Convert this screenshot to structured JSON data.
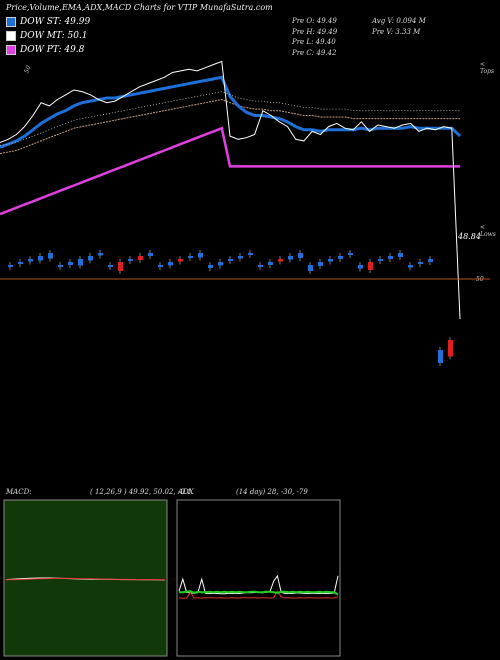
{
  "title": "Price,Volume,EMA,ADX,MACD Charts for VTIP MunafaSutra.com",
  "legend": [
    {
      "label": "DOW ST: 49.99",
      "color": "#1e6fd8"
    },
    {
      "label": "DOW MT: 50.1",
      "color": "#ffffff"
    },
    {
      "label": "DOW PT: 49.8",
      "color": "#e040e0"
    }
  ],
  "stats_left": [
    "Pre  O: 49.49",
    "Pre  H: 49.49",
    "Pre  L: 49.40",
    "Pre  C: 49.42"
  ],
  "stats_right": [
    "Avg V: 0.094  M",
    "Pre   V: 3.33 M"
  ],
  "top_label": "< Tops",
  "lows_label": "< Lows",
  "side_label": "50",
  "top_left_mark": "50",
  "last_value_label": "48.84",
  "macd_label": "MACD:",
  "macd_values": "( 12,26,9 ) 49.92,  50.02,  -0.1",
  "adx_label": "ADX",
  "adx_values": "(14  day) 28,  -30,  -79",
  "colors": {
    "up": "#1e6fd8",
    "down": "#e02020",
    "ema_fast": "#1e6fd8",
    "ema_white": "#ffffff",
    "pt": "#e040e0",
    "macd_bg": "#103808",
    "grid": "#b05020"
  },
  "chart_data": [
    {
      "type": "line",
      "title": "Price, EMA",
      "series": [
        {
          "values": [
            49.95,
            49.97,
            50.0,
            50.05,
            50.12,
            50.2,
            50.18,
            50.22,
            50.25,
            50.28,
            50.27,
            50.25,
            50.22,
            50.2,
            50.21,
            50.24,
            50.27,
            50.3,
            50.32,
            50.34,
            50.36,
            50.39,
            50.4,
            50.41,
            50.4,
            50.42,
            50.44,
            50.46,
            49.99,
            49.97,
            49.98,
            50.0,
            50.15,
            50.12,
            50.08,
            50.05,
            49.97,
            49.96,
            50.02,
            50.0,
            50.05,
            50.07,
            50.04,
            50.03,
            50.08,
            50.02,
            50.06,
            50.05,
            50.04,
            50.06,
            50.07,
            50.02,
            50.04,
            50.03,
            50.05,
            50.04,
            48.84
          ]
        },
        {
          "name": "DOW ST",
          "values": [
            49.92,
            49.94,
            49.96,
            49.99,
            50.03,
            50.07,
            50.1,
            50.13,
            50.15,
            50.18,
            50.2,
            50.21,
            50.22,
            50.23,
            50.23,
            50.24,
            50.25,
            50.26,
            50.27,
            50.28,
            50.29,
            50.3,
            50.31,
            50.32,
            50.33,
            50.34,
            50.35,
            50.36,
            50.24,
            50.18,
            50.14,
            50.12,
            50.12,
            50.11,
            50.1,
            50.08,
            50.05,
            50.03,
            50.03,
            50.02,
            50.03,
            50.03,
            50.03,
            50.03,
            50.04,
            50.03,
            50.04,
            50.04,
            50.04,
            50.04,
            50.05,
            50.04,
            50.04,
            50.04,
            50.04,
            50.04,
            49.99
          ]
        },
        {
          "name": "DOW MT",
          "values": [
            49.88,
            49.89,
            49.9,
            49.92,
            49.94,
            49.96,
            49.98,
            50.0,
            50.02,
            50.04,
            50.05,
            50.06,
            50.07,
            50.08,
            50.09,
            50.1,
            50.11,
            50.12,
            50.13,
            50.14,
            50.15,
            50.16,
            50.17,
            50.18,
            50.19,
            50.2,
            50.21,
            50.22,
            50.2,
            50.18,
            50.17,
            50.16,
            50.16,
            50.15,
            50.15,
            50.14,
            50.13,
            50.12,
            50.12,
            50.11,
            50.11,
            50.11,
            50.11,
            50.1,
            50.1,
            50.1,
            50.1,
            50.1,
            50.1,
            50.1,
            50.1,
            50.1,
            50.1,
            50.1,
            50.1,
            50.1,
            50.1
          ]
        },
        {
          "name": "DOW PT",
          "values": [
            49.5,
            49.52,
            49.54,
            49.56,
            49.58,
            49.6,
            49.62,
            49.64,
            49.66,
            49.68,
            49.7,
            49.72,
            49.74,
            49.76,
            49.78,
            49.8,
            49.82,
            49.84,
            49.86,
            49.88,
            49.9,
            49.92,
            49.94,
            49.96,
            49.98,
            50.0,
            50.02,
            50.04,
            49.8,
            49.8,
            49.8,
            49.8,
            49.8,
            49.8,
            49.8,
            49.8,
            49.8,
            49.8,
            49.8,
            49.8,
            49.8,
            49.8,
            49.8,
            49.8,
            49.8,
            49.8,
            49.8,
            49.8,
            49.8,
            49.8,
            49.8,
            49.8,
            49.8,
            49.8,
            49.8,
            49.8,
            49.8
          ]
        }
      ]
    },
    {
      "type": "bar",
      "title": "Volume",
      "values": [
        0.3,
        0.2,
        0.5,
        0.9,
        1.1,
        0.4,
        0.6,
        1.3,
        0.9,
        0.5,
        0.2,
        1.8,
        0.3,
        0.8,
        0.6,
        0.4,
        0.7,
        0.5,
        0.3,
        0.9,
        0.6,
        0.7,
        0.4,
        0.5,
        0.3,
        0.4,
        0.6,
        0.5,
        0.7,
        1.0,
        1.2,
        0.8,
        0.5,
        0.6,
        0.4,
        0.7,
        1.6,
        0.4,
        0.6,
        0.8,
        0.5,
        0.3,
        0.6,
        2.6,
        3.3
      ]
    },
    {
      "type": "line",
      "title": "MACD",
      "series": [
        {
          "values": [
            0.02,
            0.05,
            0.08,
            0.1,
            0.1,
            0.09,
            0.07,
            0.05,
            0.04,
            0.04,
            0.03,
            0.02,
            0.02,
            0.01,
            0.01,
            0.0
          ]
        },
        {
          "values": [
            0.01,
            0.02,
            0.04,
            0.06,
            0.07,
            0.08,
            0.08,
            0.07,
            0.06,
            0.05,
            0.04,
            0.03,
            0.03,
            0.02,
            0.02,
            0.01
          ]
        }
      ]
    },
    {
      "type": "line",
      "title": "ADX",
      "series": [
        {
          "values": [
            40,
            95,
            35,
            32,
            30,
            33,
            95,
            30,
            30,
            30,
            30,
            28,
            28,
            30,
            31,
            30,
            30,
            32,
            34,
            33,
            34,
            35,
            33,
            35,
            37,
            85,
            110,
            35,
            30,
            30,
            30,
            32,
            32,
            30,
            30,
            30,
            30,
            31,
            30,
            30,
            30,
            32,
            110
          ]
        },
        {
          "values": [
            10,
            8,
            9,
            35,
            9,
            10,
            9,
            10,
            10,
            10,
            9,
            10,
            9,
            9,
            10,
            9,
            9,
            10,
            10,
            10,
            10,
            9,
            10,
            10,
            9,
            10,
            40,
            15,
            9,
            10,
            9,
            9,
            10,
            9,
            10,
            10,
            9,
            9,
            9,
            10,
            9,
            9,
            15
          ]
        },
        {
          "values": [
            14,
            14,
            15,
            16,
            13,
            15,
            14,
            14,
            15,
            14,
            15,
            14,
            15,
            14,
            15,
            14,
            15,
            14,
            14,
            15,
            15,
            14,
            14,
            15,
            15,
            14,
            13,
            15,
            15,
            14,
            15,
            14,
            15,
            14,
            15,
            14,
            14,
            15,
            14,
            15,
            14,
            14,
            10
          ]
        }
      ]
    }
  ]
}
